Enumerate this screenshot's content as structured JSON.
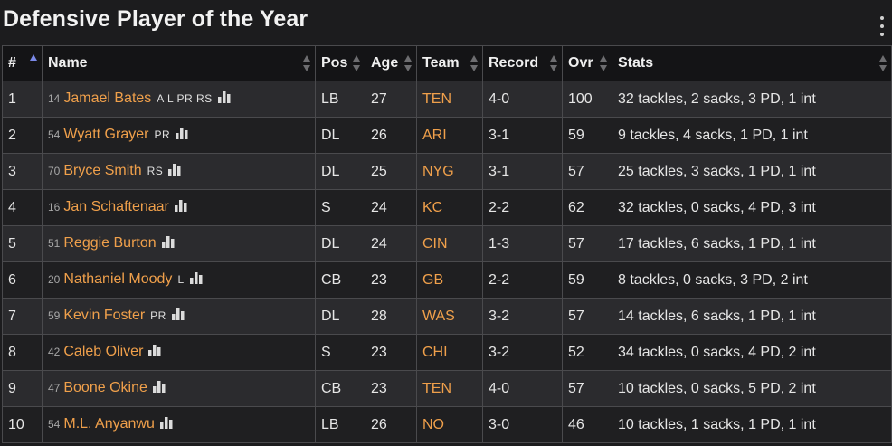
{
  "title": "Defensive Player of the Year",
  "columns": {
    "rank": "#",
    "name": "Name",
    "pos": "Pos",
    "age": "Age",
    "team": "Team",
    "record": "Record",
    "ovr": "Ovr",
    "stats": "Stats"
  },
  "colors": {
    "link": "#f0a04b",
    "sort_active": "#7b89e8"
  },
  "rows": [
    {
      "rank": "1",
      "jersey": "14",
      "name": "Jamael Bates",
      "skills": "A L PR RS",
      "pos": "LB",
      "age": "27",
      "team": "TEN",
      "record": "4-0",
      "ovr": "100",
      "stats": "32 tackles, 2 sacks, 3 PD, 1 int"
    },
    {
      "rank": "2",
      "jersey": "54",
      "name": "Wyatt Grayer",
      "skills": "PR",
      "pos": "DL",
      "age": "26",
      "team": "ARI",
      "record": "3-1",
      "ovr": "59",
      "stats": "9 tackles, 4 sacks, 1 PD, 1 int"
    },
    {
      "rank": "3",
      "jersey": "70",
      "name": "Bryce Smith",
      "skills": "RS",
      "pos": "DL",
      "age": "25",
      "team": "NYG",
      "record": "3-1",
      "ovr": "57",
      "stats": "25 tackles, 3 sacks, 1 PD, 1 int"
    },
    {
      "rank": "4",
      "jersey": "16",
      "name": "Jan Schaftenaar",
      "skills": "",
      "pos": "S",
      "age": "24",
      "team": "KC",
      "record": "2-2",
      "ovr": "62",
      "stats": "32 tackles, 0 sacks, 4 PD, 3 int"
    },
    {
      "rank": "5",
      "jersey": "51",
      "name": "Reggie Burton",
      "skills": "",
      "pos": "DL",
      "age": "24",
      "team": "CIN",
      "record": "1-3",
      "ovr": "57",
      "stats": "17 tackles, 6 sacks, 1 PD, 1 int"
    },
    {
      "rank": "6",
      "jersey": "20",
      "name": "Nathaniel Moody",
      "skills": "L",
      "pos": "CB",
      "age": "23",
      "team": "GB",
      "record": "2-2",
      "ovr": "59",
      "stats": "8 tackles, 0 sacks, 3 PD, 2 int"
    },
    {
      "rank": "7",
      "jersey": "59",
      "name": "Kevin Foster",
      "skills": "PR",
      "pos": "DL",
      "age": "28",
      "team": "WAS",
      "record": "3-2",
      "ovr": "57",
      "stats": "14 tackles, 6 sacks, 1 PD, 1 int"
    },
    {
      "rank": "8",
      "jersey": "42",
      "name": "Caleb Oliver",
      "skills": "",
      "pos": "S",
      "age": "23",
      "team": "CHI",
      "record": "3-2",
      "ovr": "52",
      "stats": "34 tackles, 0 sacks, 4 PD, 2 int"
    },
    {
      "rank": "9",
      "jersey": "47",
      "name": "Boone Okine",
      "skills": "",
      "pos": "CB",
      "age": "23",
      "team": "TEN",
      "record": "4-0",
      "ovr": "57",
      "stats": "10 tackles, 0 sacks, 5 PD, 2 int"
    },
    {
      "rank": "10",
      "jersey": "54",
      "name": "M.L. Anyanwu",
      "skills": "",
      "pos": "LB",
      "age": "26",
      "team": "NO",
      "record": "3-0",
      "ovr": "46",
      "stats": "10 tackles, 1 sacks, 1 PD, 1 int"
    }
  ]
}
